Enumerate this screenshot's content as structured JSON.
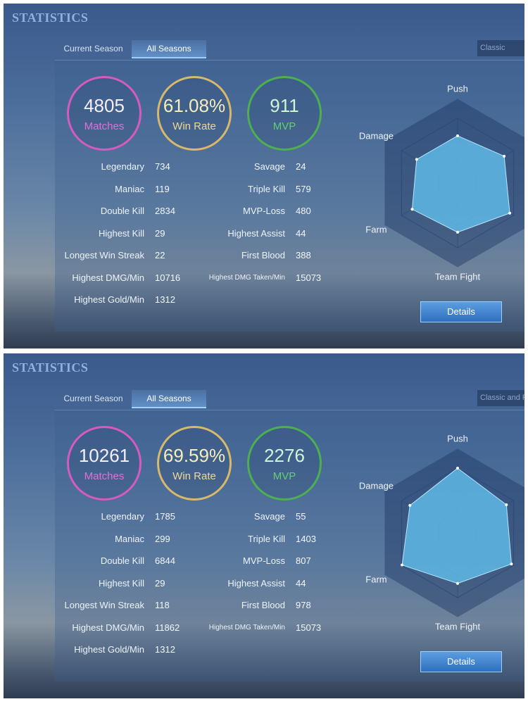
{
  "panels": [
    {
      "title": "STATISTICS",
      "tabs": [
        "Current Season",
        "All Seasons"
      ],
      "mode": "Classic",
      "circles": [
        {
          "value": "4805",
          "label": "Matches"
        },
        {
          "value": "61.08%",
          "label": "Win Rate"
        },
        {
          "value": "911",
          "label": "MVP"
        }
      ],
      "stats_left": [
        {
          "label": "Legendary",
          "value": 734
        },
        {
          "label": "Maniac",
          "value": 119
        },
        {
          "label": "Double Kill",
          "value": 2834
        },
        {
          "label": "Highest Kill",
          "value": 29
        },
        {
          "label": "Longest Win Streak",
          "value": 22
        },
        {
          "label": "Highest DMG/Min",
          "value": 10716
        },
        {
          "label": "Highest Gold/Min",
          "value": 1312
        }
      ],
      "stats_right": [
        {
          "label": "Savage",
          "value": 24
        },
        {
          "label": "Triple Kill",
          "value": 579
        },
        {
          "label": "MVP-Loss",
          "value": 480
        },
        {
          "label": "Highest Assist",
          "value": 44
        },
        {
          "label": "First Blood",
          "value": 388
        },
        {
          "label": "Highest DMG Taken/Min",
          "value": 15073
        }
      ],
      "radar": {
        "axes": [
          "Push",
          null,
          null,
          "Team Fight",
          "Farm",
          "Damage"
        ],
        "values": [
          73,
          83,
          93,
          76,
          81,
          73
        ],
        "rmax": 100
      },
      "button": "Details"
    },
    {
      "title": "STATISTICS",
      "tabs": [
        "Current Season",
        "All Seasons"
      ],
      "mode": "Classic and R",
      "circles": [
        {
          "value": "10261",
          "label": "Matches"
        },
        {
          "value": "69.59%",
          "label": "Win Rate"
        },
        {
          "value": "2276",
          "label": "MVP"
        }
      ],
      "stats_left": [
        {
          "label": "Legendary",
          "value": 1785
        },
        {
          "label": "Maniac",
          "value": 299
        },
        {
          "label": "Double Kill",
          "value": 6844
        },
        {
          "label": "Highest Kill",
          "value": 29
        },
        {
          "label": "Longest Win Streak",
          "value": 118
        },
        {
          "label": "Highest DMG/Min",
          "value": 11862
        },
        {
          "label": "Highest Gold/Min",
          "value": 1312
        }
      ],
      "stats_right": [
        {
          "label": "Savage",
          "value": 55
        },
        {
          "label": "Triple Kill",
          "value": 1403
        },
        {
          "label": "MVP-Loss",
          "value": 807
        },
        {
          "label": "Highest Assist",
          "value": 44
        },
        {
          "label": "First Blood",
          "value": 978
        },
        {
          "label": "Highest DMG Taken/Min",
          "value": 15073
        }
      ],
      "radar": {
        "axes": [
          "Push",
          null,
          null,
          "Team Fight",
          "Farm",
          "Damage"
        ],
        "values": [
          100,
          87,
          96,
          78,
          99,
          85
        ],
        "rmax": 100
      },
      "button": "Details"
    }
  ]
}
